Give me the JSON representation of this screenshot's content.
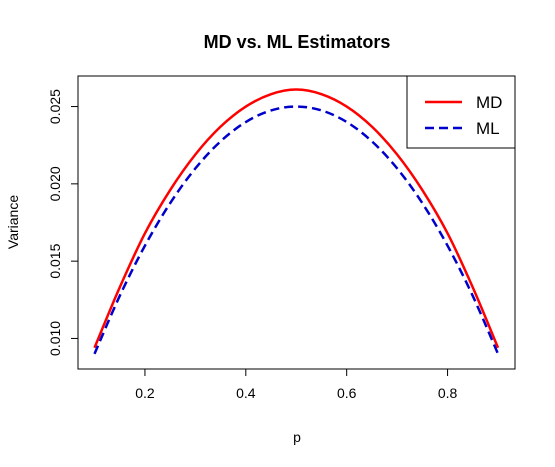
{
  "chart_data": {
    "type": "line",
    "title": "MD vs. ML Estimators",
    "xlabel": "p",
    "ylabel": "Variance",
    "xlim": [
      0.1,
      0.9
    ],
    "ylim": [
      0.0088,
      0.0262
    ],
    "x_ticks": [
      0.2,
      0.4,
      0.6,
      0.8
    ],
    "x_tick_labels": [
      "0.2",
      "0.4",
      "0.6",
      "0.8"
    ],
    "y_ticks": [
      0.01,
      0.015,
      0.02,
      0.025
    ],
    "y_tick_labels": [
      "0.010",
      "0.015",
      "0.020",
      "0.025"
    ],
    "grid": false,
    "legend_position": "top-right",
    "x": [
      0.1,
      0.15,
      0.2,
      0.25,
      0.3,
      0.35,
      0.4,
      0.45,
      0.5,
      0.55,
      0.6,
      0.65,
      0.7,
      0.75,
      0.8,
      0.85,
      0.9
    ],
    "series": [
      {
        "name": "MD",
        "color": "#ff0000",
        "line_style": "solid",
        "values": [
          0.0094,
          0.0133,
          0.0168,
          0.0196,
          0.0219,
          0.0237,
          0.025,
          0.0258,
          0.0261,
          0.0258,
          0.025,
          0.0237,
          0.0219,
          0.0196,
          0.0168,
          0.0133,
          0.0094
        ]
      },
      {
        "name": "ML",
        "color": "#0000cc",
        "line_style": "dashed",
        "values": [
          0.009,
          0.01275,
          0.016,
          0.01875,
          0.021,
          0.02275,
          0.024,
          0.02475,
          0.025,
          0.02475,
          0.024,
          0.02275,
          0.021,
          0.01875,
          0.016,
          0.01275,
          0.009
        ]
      }
    ]
  }
}
